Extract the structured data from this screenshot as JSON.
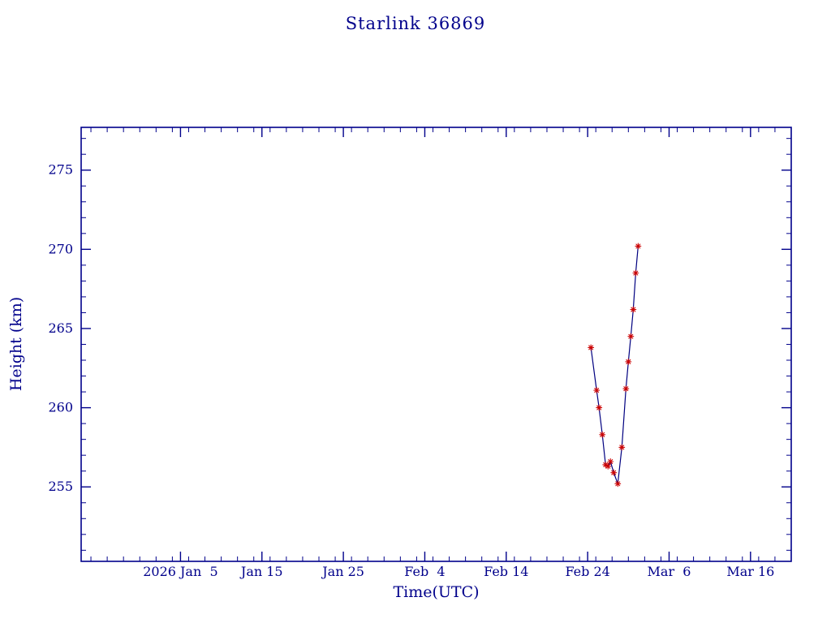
{
  "page": {
    "background": "#ffffff"
  },
  "chart_data": {
    "type": "line",
    "title": "Starlink 36869",
    "xlabel": "Time(UTC)",
    "ylabel": "Height (km)",
    "legend": false,
    "grid": false,
    "xlim_days": [
      -7.2,
      80
    ],
    "ylim": [
      250.3,
      277.7
    ],
    "x_ticks": [
      {
        "label": "2026 Jan  5",
        "day": 5
      },
      {
        "label": "Jan 15",
        "day": 15
      },
      {
        "label": "Jan 25",
        "day": 25
      },
      {
        "label": "Feb  4",
        "day": 35
      },
      {
        "label": "Feb 14",
        "day": 45
      },
      {
        "label": "Feb 24",
        "day": 55
      },
      {
        "label": "Mar  6",
        "day": 65
      },
      {
        "label": "Mar 16",
        "day": 75
      }
    ],
    "x_minor_step_days": 2,
    "y_ticks": [
      255,
      260,
      265,
      270,
      275
    ],
    "y_minor_step": 1,
    "colors": {
      "axis": "#00008b",
      "text": "#00008b",
      "line": "#000080",
      "marker": "#cc0000"
    },
    "series": [
      {
        "name": "height-km",
        "marker": "asterisk",
        "marker_color": "#cc0000",
        "line_color": "#000080",
        "points": [
          [
            55.4,
            263.8
          ],
          [
            56.1,
            261.1
          ],
          [
            56.4,
            260.0
          ],
          [
            56.8,
            258.3
          ],
          [
            57.2,
            256.4
          ],
          [
            57.5,
            256.3
          ],
          [
            57.8,
            256.6
          ],
          [
            58.2,
            255.9
          ],
          [
            58.7,
            255.2
          ],
          [
            59.2,
            257.5
          ],
          [
            59.7,
            261.2
          ],
          [
            60.0,
            262.9
          ],
          [
            60.3,
            264.5
          ],
          [
            60.6,
            266.2
          ],
          [
            60.9,
            268.5
          ],
          [
            61.2,
            270.2
          ]
        ]
      }
    ]
  }
}
